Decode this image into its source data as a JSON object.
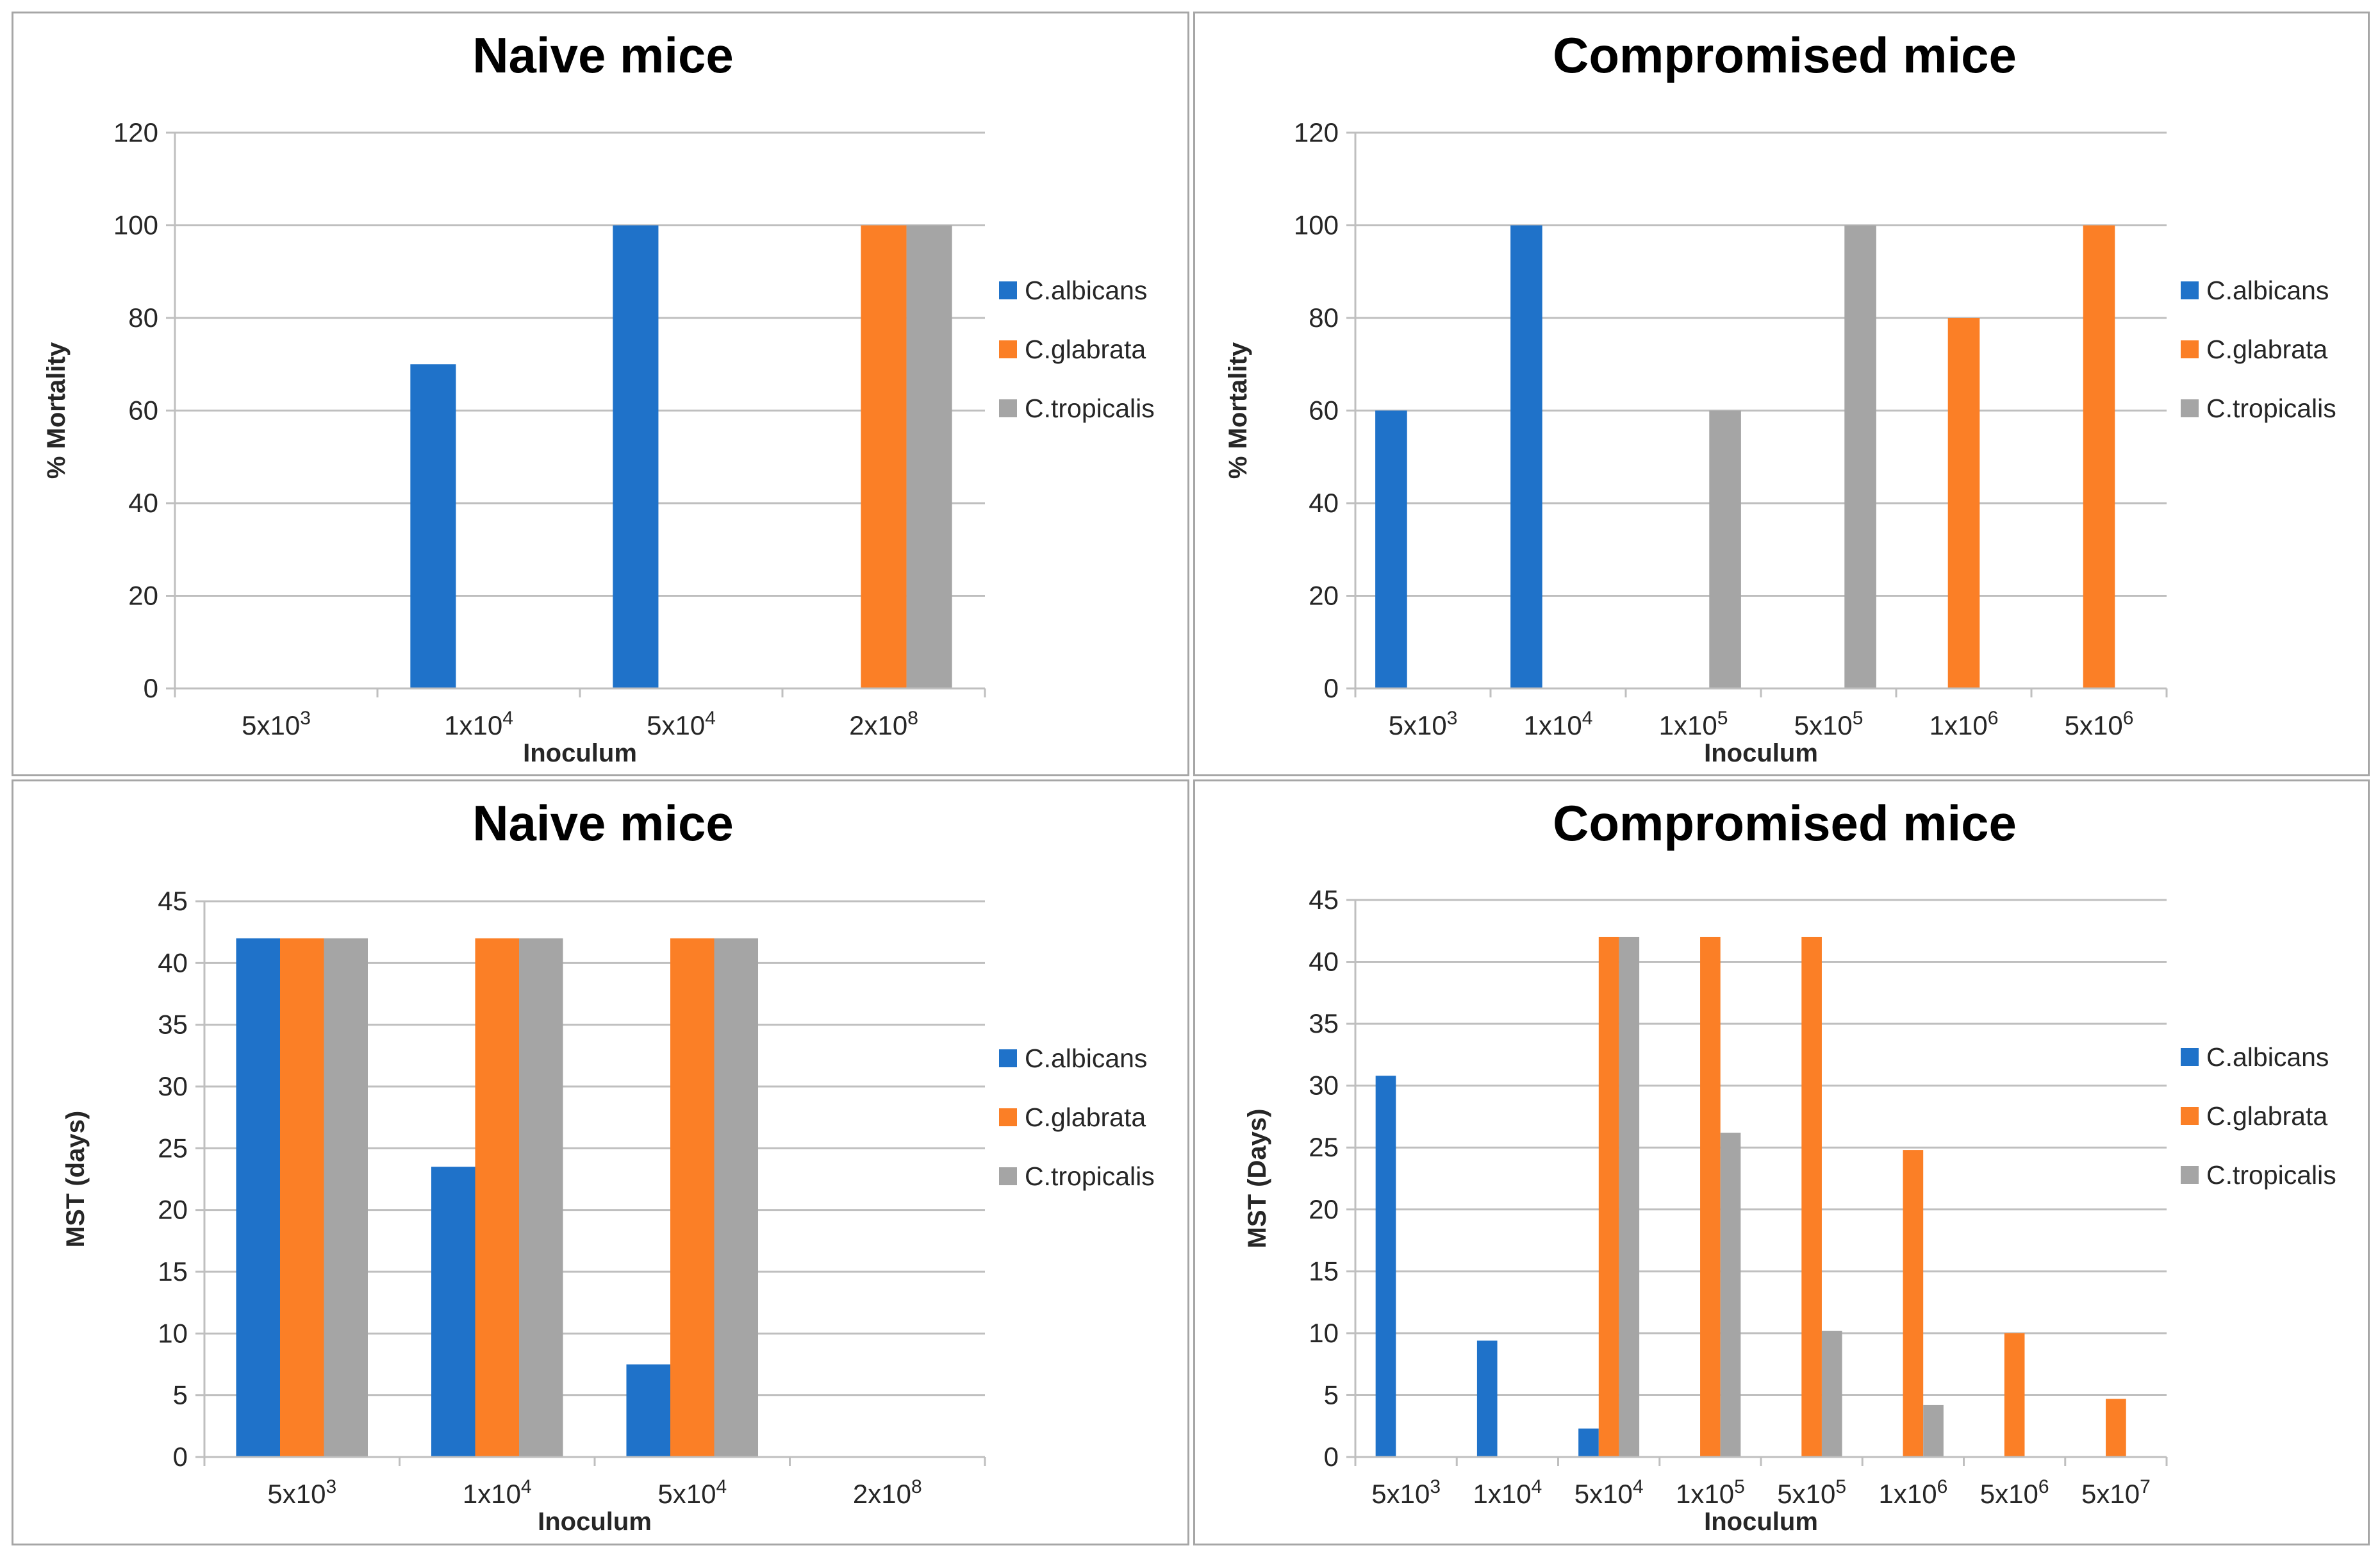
{
  "colors": {
    "C.albicans": "#1f72c9",
    "C.glabrata": "#fb7f26",
    "C.tropicalis": "#a5a5a5"
  },
  "chart_data": [
    {
      "type": "bar",
      "title": "Naive mice",
      "ylabel": "% Mortality",
      "xlabel": "Inoculum",
      "ylim": [
        0,
        120
      ],
      "ystep": 20,
      "categories": [
        [
          "5x10",
          "3"
        ],
        [
          "1x10",
          "4"
        ],
        [
          "5x10",
          "4"
        ],
        [
          "2x10",
          "8"
        ]
      ],
      "series": [
        {
          "name": "C.albicans",
          "values": [
            0,
            70,
            100,
            0
          ]
        },
        {
          "name": "C.glabrata",
          "values": [
            0,
            0,
            0,
            100
          ]
        },
        {
          "name": "C.tropicalis",
          "values": [
            0,
            0,
            0,
            100
          ]
        }
      ],
      "legend": "right"
    },
    {
      "type": "bar",
      "title": "Compromised mice",
      "ylabel": "% Mortality",
      "xlabel": "Inoculum",
      "ylim": [
        0,
        120
      ],
      "ystep": 20,
      "categories": [
        [
          "5x10",
          "3"
        ],
        [
          "1x10",
          "4"
        ],
        [
          "1x10",
          "5"
        ],
        [
          "5x10",
          "5"
        ],
        [
          "1x10",
          "6"
        ],
        [
          "5x10",
          "6"
        ]
      ],
      "series": [
        {
          "name": "C.albicans",
          "values": [
            60,
            100,
            0,
            0,
            0,
            0
          ]
        },
        {
          "name": "C.glabrata",
          "values": [
            0,
            0,
            0,
            0,
            80,
            100
          ]
        },
        {
          "name": "C.tropicalis",
          "values": [
            0,
            0,
            60,
            100,
            0,
            0
          ]
        }
      ],
      "legend": "right"
    },
    {
      "type": "bar",
      "title": "Naive mice",
      "ylabel": "MST (days)",
      "xlabel": "Inoculum",
      "ylim": [
        0,
        45
      ],
      "ystep": 5,
      "categories": [
        [
          "5x10",
          "3"
        ],
        [
          "1x10",
          "4"
        ],
        [
          "5x10",
          "4"
        ],
        [
          "2x10",
          "8"
        ]
      ],
      "series": [
        {
          "name": "C.albicans",
          "values": [
            42,
            23.5,
            7.5,
            0
          ]
        },
        {
          "name": "C.glabrata",
          "values": [
            42,
            42,
            42,
            0
          ]
        },
        {
          "name": "C.tropicalis",
          "values": [
            42,
            42,
            42,
            0
          ]
        }
      ],
      "legend": "right"
    },
    {
      "type": "bar",
      "title": "Compromised mice",
      "ylabel": "MST (Days)",
      "xlabel": "Inoculum",
      "ylim": [
        0,
        45
      ],
      "ystep": 5,
      "categories": [
        [
          "5x10",
          "3"
        ],
        [
          "1x10",
          "4"
        ],
        [
          "5x10",
          "4"
        ],
        [
          "1x10",
          "5"
        ],
        [
          "5x10",
          "5"
        ],
        [
          "1x10",
          "6"
        ],
        [
          "5x10",
          "6"
        ],
        [
          "5x10",
          "7"
        ]
      ],
      "series": [
        {
          "name": "C.albicans",
          "values": [
            30.8,
            9.4,
            2.3,
            0,
            0,
            0,
            0,
            0
          ]
        },
        {
          "name": "C.glabrata",
          "values": [
            0,
            0,
            42,
            42,
            42,
            24.8,
            10,
            4.7
          ]
        },
        {
          "name": "C.tropicalis",
          "values": [
            0,
            0,
            42,
            26.2,
            10.2,
            4.2,
            0,
            0
          ]
        }
      ],
      "legend": "right"
    }
  ]
}
